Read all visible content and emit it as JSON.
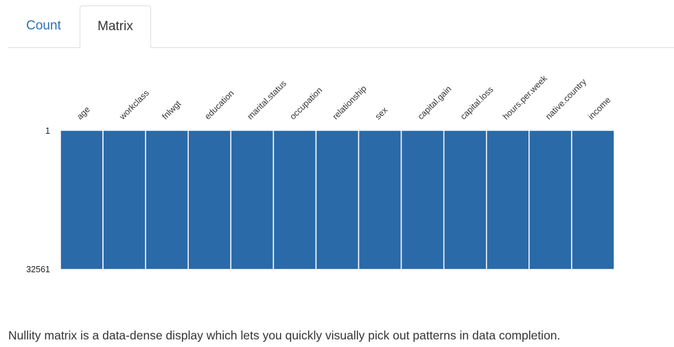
{
  "tabs": [
    {
      "label": "Count",
      "active": false
    },
    {
      "label": "Matrix",
      "active": true
    }
  ],
  "chart_data": {
    "type": "heatmap",
    "title": "",
    "columns": [
      "age",
      "workclass",
      "fnlwgt",
      "education",
      "marital.status",
      "occupation",
      "relationship",
      "sex",
      "capital.gain",
      "capital.loss",
      "hours.per.week",
      "native.country",
      "income"
    ],
    "rows": {
      "first": "1",
      "last": "32561"
    },
    "completeness": [
      1,
      1,
      1,
      1,
      1,
      1,
      1,
      1,
      1,
      1,
      1,
      1,
      1
    ],
    "present_color": "#2a6aa8",
    "separator_color": "#ffffff"
  },
  "description": "Nullity matrix is a data-dense display which lets you quickly visually pick out patterns in data completion."
}
